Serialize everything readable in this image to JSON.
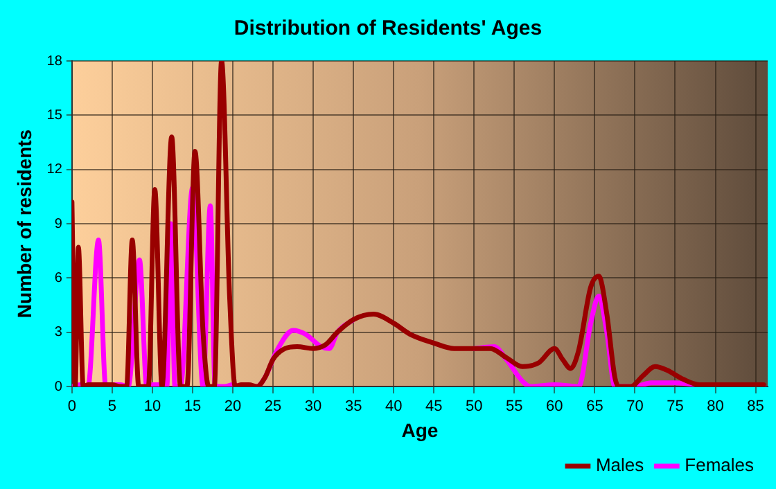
{
  "chart_data": {
    "type": "line",
    "title": "Distribution of Residents' Ages",
    "xlabel": "Age",
    "ylabel": "Number of residents",
    "xlim": [
      0,
      86.5
    ],
    "xticks": [
      0,
      5,
      10,
      15,
      20,
      25,
      30,
      35,
      40,
      45,
      50,
      55,
      60,
      65,
      70,
      75,
      80,
      85
    ],
    "ylim": [
      0,
      18
    ],
    "yticks": [
      0,
      3,
      6,
      9,
      12,
      15,
      18
    ],
    "grid": true,
    "legend": "bottom right",
    "marker": "none",
    "line_style": "solid",
    "series": [
      {
        "name": "Males",
        "color": "#990000",
        "x": [
          0,
          0.4,
          0.8,
          1.4,
          2,
          3,
          4,
          5,
          6,
          6.8,
          7.5,
          8.3,
          9.5,
          10.3,
          11.2,
          12.4,
          13.5,
          14.3,
          15.3,
          16.3,
          17,
          17.7,
          18.6,
          19.6,
          20.3,
          21,
          22,
          23,
          24,
          25,
          26.5,
          28,
          30,
          31.5,
          33,
          35,
          37.5,
          40,
          42,
          45,
          47.5,
          50,
          52,
          54,
          56,
          58,
          60,
          61,
          62,
          63,
          64.5,
          65.5,
          66.5,
          67.5,
          68,
          69.5,
          71,
          72.5,
          74,
          76,
          78,
          80,
          82,
          84,
          86
        ],
        "values": [
          10.2,
          0,
          7.7,
          0,
          0.1,
          0.1,
          0.1,
          0.1,
          0,
          0,
          8.1,
          0,
          0,
          10.9,
          0,
          13.8,
          0,
          0,
          13,
          3,
          0,
          0,
          18,
          5,
          0,
          0.1,
          0.1,
          0,
          0.5,
          1.5,
          2.1,
          2.2,
          2.1,
          2.3,
          3,
          3.7,
          4,
          3.5,
          2.9,
          2.4,
          2.1,
          2.1,
          2.1,
          1.6,
          1.1,
          1.3,
          2.1,
          1.5,
          1,
          2,
          5.5,
          6.1,
          4,
          0.5,
          0,
          0,
          0.6,
          1.1,
          0.9,
          0.4,
          0.1,
          0.1,
          0.1,
          0.1,
          0.1
        ]
      },
      {
        "name": "Females",
        "color": "#ff00ff",
        "x": [
          0,
          1,
          2,
          3.3,
          4.2,
          5,
          6,
          7,
          8.4,
          9.3,
          10,
          11,
          11.8,
          12.3,
          12.8,
          13.5,
          15,
          16.3,
          17.2,
          17.8,
          19,
          20,
          21,
          23,
          24,
          25.5,
          27.5,
          29,
          31,
          32,
          33,
          35,
          37.5,
          40,
          42,
          45,
          47.5,
          50,
          52.5,
          54,
          56,
          57,
          60,
          63,
          64.5,
          65.5,
          66.5,
          67.5,
          70,
          72,
          75,
          80,
          86
        ],
        "values": [
          0,
          0.1,
          0,
          8.1,
          0,
          0.1,
          0.1,
          0,
          7,
          0,
          0.1,
          0.1,
          0,
          9,
          0,
          0,
          11,
          0,
          10,
          0,
          0,
          0.1,
          0,
          0,
          0.5,
          2,
          3.1,
          2.9,
          2.2,
          2.1,
          3,
          3.7,
          null,
          null,
          null,
          null,
          null,
          2.1,
          2.2,
          1.5,
          0.3,
          0,
          0.1,
          0,
          3.5,
          5,
          3,
          0,
          0,
          0.2,
          0.2,
          0,
          0
        ]
      }
    ]
  }
}
